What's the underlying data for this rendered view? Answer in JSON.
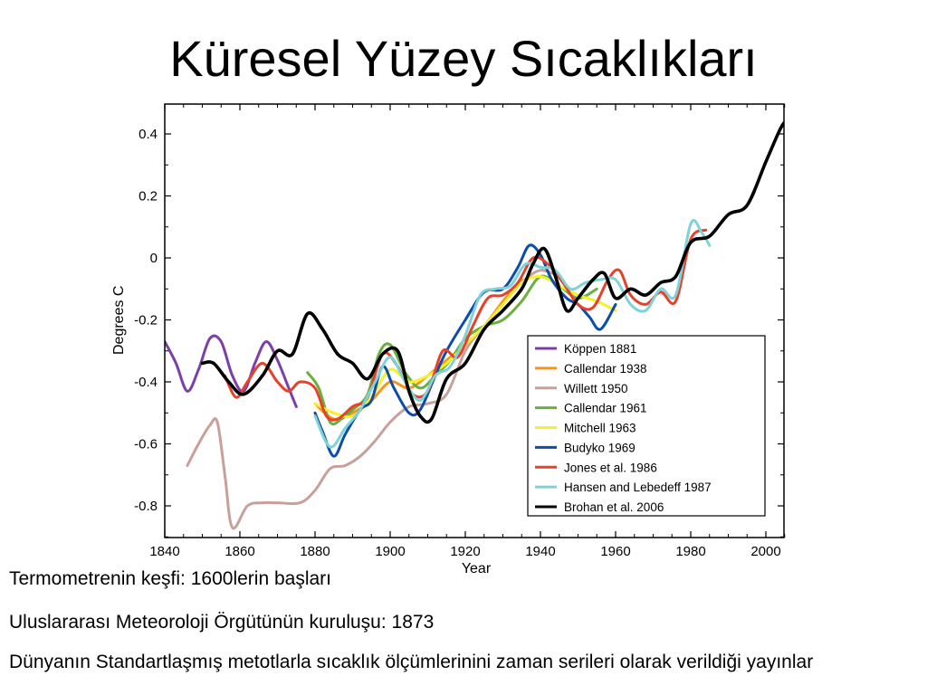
{
  "slide": {
    "title": "Küresel Yüzey Sıcaklıkları",
    "bullets": [
      "Termometrenin keşfi: 1600lerin başları",
      "Uluslararası Meteoroloji Örgütünün kuruluşu: 1873",
      "Dünyanın Standartlaşmış metotlarla sıcaklık ölçümlerinini zaman serileri olarak verildiği yayınlar"
    ]
  },
  "chart_data": {
    "type": "line",
    "title": "",
    "xlabel": "Year",
    "ylabel": "Degrees C",
    "xlim": [
      1840,
      2006
    ],
    "ylim": [
      -0.9,
      0.46
    ],
    "xticks": [
      "1840",
      "1860",
      "1880",
      "1900",
      "1920",
      "1940",
      "1960",
      "1980",
      "2000"
    ],
    "yticks": [
      "0.4",
      "0.2",
      "0",
      "-0.2",
      "-0.4",
      "-0.6",
      "-0.8"
    ],
    "legend_position": "bottom-right",
    "grid": false,
    "series": [
      {
        "name": "Köppen 1881",
        "color": "#7b3fa8",
        "x": [
          1840,
          1843,
          1846,
          1849,
          1852,
          1855,
          1858,
          1861,
          1864,
          1867,
          1870,
          1873,
          1875
        ],
        "y": [
          -0.27,
          -0.34,
          -0.43,
          -0.36,
          -0.26,
          -0.27,
          -0.38,
          -0.43,
          -0.34,
          -0.27,
          -0.33,
          -0.42,
          -0.48
        ]
      },
      {
        "name": "Callendar 1938",
        "color": "#f7941d",
        "x": [
          1880,
          1885,
          1890,
          1895,
          1900,
          1905,
          1910,
          1915,
          1920,
          1925,
          1930,
          1935
        ],
        "y": [
          -0.47,
          -0.52,
          -0.5,
          -0.46,
          -0.4,
          -0.42,
          -0.38,
          -0.33,
          -0.28,
          -0.22,
          -0.14,
          -0.07
        ]
      },
      {
        "name": "Willett 1950",
        "color": "#c8a09a",
        "x": [
          1846,
          1849,
          1852,
          1854,
          1856,
          1858,
          1862,
          1866,
          1870,
          1876,
          1880,
          1884,
          1888,
          1892,
          1896,
          1900,
          1905,
          1910,
          1915,
          1920,
          1925,
          1930,
          1935,
          1940,
          1945
        ],
        "y": [
          -0.67,
          -0.6,
          -0.54,
          -0.53,
          -0.7,
          -0.87,
          -0.8,
          -0.79,
          -0.79,
          -0.79,
          -0.75,
          -0.68,
          -0.67,
          -0.64,
          -0.59,
          -0.53,
          -0.48,
          -0.47,
          -0.44,
          -0.3,
          -0.22,
          -0.15,
          -0.08,
          -0.04,
          -0.06
        ]
      },
      {
        "name": "Callendar 1961",
        "color": "#6ab03c",
        "x": [
          1878,
          1881,
          1884,
          1887,
          1890,
          1894,
          1897,
          1900,
          1904,
          1908,
          1912,
          1916,
          1920,
          1925,
          1930,
          1935,
          1940,
          1945,
          1950,
          1955
        ],
        "y": [
          -0.37,
          -0.42,
          -0.53,
          -0.52,
          -0.49,
          -0.44,
          -0.31,
          -0.28,
          -0.37,
          -0.42,
          -0.38,
          -0.33,
          -0.26,
          -0.22,
          -0.2,
          -0.14,
          -0.06,
          -0.09,
          -0.13,
          -0.1
        ]
      },
      {
        "name": "Mitchell 1963",
        "color": "#f6f02a",
        "x": [
          1880,
          1885,
          1890,
          1895,
          1900,
          1905,
          1910,
          1915,
          1920,
          1925,
          1930,
          1935,
          1940,
          1945,
          1950,
          1955,
          1960
        ],
        "y": [
          -0.47,
          -0.5,
          -0.51,
          -0.45,
          -0.36,
          -0.4,
          -0.38,
          -0.34,
          -0.28,
          -0.22,
          -0.15,
          -0.08,
          -0.06,
          -0.09,
          -0.12,
          -0.14,
          -0.17
        ]
      },
      {
        "name": "Budyko 1969",
        "color": "#0b4da8",
        "x": [
          1880,
          1882,
          1885,
          1888,
          1892,
          1895,
          1898,
          1901,
          1905,
          1908,
          1912,
          1915,
          1920,
          1925,
          1930,
          1934,
          1937,
          1940,
          1943,
          1947,
          1950,
          1953,
          1956,
          1960
        ],
        "y": [
          -0.5,
          -0.56,
          -0.64,
          -0.57,
          -0.49,
          -0.46,
          -0.35,
          -0.42,
          -0.5,
          -0.49,
          -0.38,
          -0.3,
          -0.2,
          -0.11,
          -0.1,
          -0.03,
          0.04,
          0.01,
          -0.07,
          -0.13,
          -0.15,
          -0.19,
          -0.23,
          -0.15
        ]
      },
      {
        "name": "Jones et al. 1986",
        "color": "#e8412b",
        "x": [
          1856,
          1859,
          1862,
          1866,
          1870,
          1873,
          1876,
          1880,
          1883,
          1886,
          1890,
          1894,
          1898,
          1902,
          1906,
          1910,
          1914,
          1918,
          1922,
          1926,
          1930,
          1934,
          1938,
          1942,
          1946,
          1950,
          1954,
          1958,
          1961,
          1964,
          1968,
          1972,
          1976,
          1980,
          1984
        ],
        "y": [
          -0.38,
          -0.45,
          -0.4,
          -0.34,
          -0.4,
          -0.43,
          -0.4,
          -0.42,
          -0.51,
          -0.52,
          -0.48,
          -0.45,
          -0.31,
          -0.35,
          -0.44,
          -0.43,
          -0.3,
          -0.32,
          -0.22,
          -0.13,
          -0.12,
          -0.08,
          0.0,
          -0.02,
          -0.08,
          -0.15,
          -0.16,
          -0.07,
          -0.04,
          -0.12,
          -0.15,
          -0.11,
          -0.14,
          0.06,
          0.09
        ]
      },
      {
        "name": "Hansen and Lebedeff 1987",
        "color": "#7fd3d8",
        "x": [
          1880,
          1884,
          1888,
          1892,
          1896,
          1900,
          1904,
          1908,
          1912,
          1916,
          1920,
          1924,
          1928,
          1932,
          1936,
          1940,
          1944,
          1948,
          1952,
          1956,
          1960,
          1964,
          1968,
          1972,
          1976,
          1980,
          1983,
          1985
        ],
        "y": [
          -0.51,
          -0.61,
          -0.55,
          -0.49,
          -0.4,
          -0.32,
          -0.4,
          -0.46,
          -0.38,
          -0.35,
          -0.25,
          -0.12,
          -0.1,
          -0.09,
          -0.02,
          -0.03,
          -0.04,
          -0.1,
          -0.08,
          -0.07,
          -0.07,
          -0.15,
          -0.17,
          -0.1,
          -0.12,
          0.11,
          0.08,
          0.04
        ]
      },
      {
        "name": "Brohan et al. 2006",
        "color": "#000000",
        "x": [
          1850,
          1853,
          1857,
          1861,
          1866,
          1870,
          1874,
          1878,
          1882,
          1886,
          1890,
          1894,
          1898,
          1902,
          1905,
          1908,
          1911,
          1915,
          1920,
          1925,
          1930,
          1935,
          1938,
          1941,
          1944,
          1947,
          1950,
          1954,
          1957,
          1960,
          1964,
          1968,
          1972,
          1976,
          1980,
          1985,
          1990,
          1995,
          2000,
          2004,
          2006
        ],
        "y": [
          -0.34,
          -0.34,
          -0.4,
          -0.44,
          -0.38,
          -0.3,
          -0.31,
          -0.18,
          -0.23,
          -0.31,
          -0.34,
          -0.39,
          -0.31,
          -0.3,
          -0.43,
          -0.51,
          -0.52,
          -0.39,
          -0.34,
          -0.23,
          -0.17,
          -0.1,
          -0.02,
          0.03,
          -0.06,
          -0.17,
          -0.13,
          -0.07,
          -0.05,
          -0.13,
          -0.1,
          -0.12,
          -0.08,
          -0.06,
          0.05,
          0.07,
          0.14,
          0.17,
          0.31,
          0.42,
          0.45
        ]
      }
    ]
  }
}
